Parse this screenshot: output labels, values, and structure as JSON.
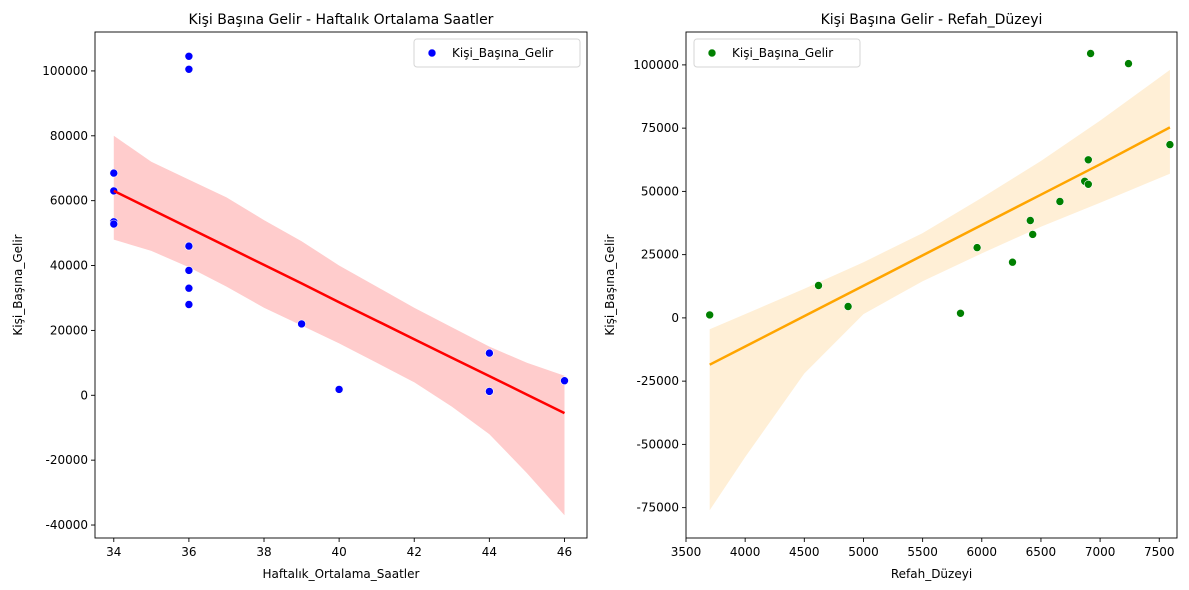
{
  "chart_data": [
    {
      "type": "scatter",
      "title": "Kişi Başına Gelir - Haftalık Ortalama Saatler",
      "xlabel": "Haftalık_Ortalama_Saatler",
      "ylabel": "Kişi_Başına_Gelir",
      "xlim": [
        33.5,
        46.6
      ],
      "ylim": [
        -44000,
        112000
      ],
      "xticks": [
        34,
        36,
        38,
        40,
        42,
        44,
        46
      ],
      "yticks": [
        -40000,
        -20000,
        0,
        20000,
        40000,
        60000,
        80000,
        100000
      ],
      "grid": false,
      "legend": {
        "position": "top-right",
        "entries": [
          "Kişi_Başına_Gelir"
        ]
      },
      "series": [
        {
          "name": "Kişi_Başına_Gelir",
          "color": "#0000ff",
          "points": [
            {
              "x": 34,
              "y": 68500
            },
            {
              "x": 34,
              "y": 63000
            },
            {
              "x": 34,
              "y": 53500
            },
            {
              "x": 34,
              "y": 52800
            },
            {
              "x": 36,
              "y": 104500
            },
            {
              "x": 36,
              "y": 100500
            },
            {
              "x": 36,
              "y": 46000
            },
            {
              "x": 36,
              "y": 38500
            },
            {
              "x": 36,
              "y": 33000
            },
            {
              "x": 36,
              "y": 28000
            },
            {
              "x": 39,
              "y": 22000
            },
            {
              "x": 40,
              "y": 1800
            },
            {
              "x": 44,
              "y": 13000
            },
            {
              "x": 44,
              "y": 1200
            },
            {
              "x": 46,
              "y": 4500
            }
          ]
        }
      ],
      "regression": {
        "color": "#ff0000",
        "band_color": "#ffcccc",
        "x": [
          34,
          35,
          36,
          37,
          38,
          39,
          40,
          41,
          42,
          43,
          44,
          45,
          46
        ],
        "y": [
          63000,
          57300,
          51600,
          45900,
          40200,
          34500,
          28700,
          23000,
          17300,
          11600,
          5900,
          200,
          -5500
        ],
        "upper": [
          80000,
          72000,
          66500,
          61000,
          54000,
          47500,
          40000,
          33500,
          27000,
          21000,
          15000,
          10000,
          6000
        ],
        "lower": [
          48000,
          44500,
          39500,
          33500,
          27000,
          21500,
          16000,
          10000,
          4000,
          -3500,
          -12000,
          -24000,
          -37000
        ]
      }
    },
    {
      "type": "scatter",
      "title": "Kişi Başına Gelir - Refah_Düzeyi",
      "xlabel": "Refah_Düzeyi",
      "ylabel": "Kişi_Başına_Gelir",
      "xlim": [
        3500,
        7650
      ],
      "ylim": [
        -87000,
        113000
      ],
      "xticks": [
        3500,
        4000,
        4500,
        5000,
        5500,
        6000,
        6500,
        7000,
        7500
      ],
      "yticks": [
        -75000,
        -50000,
        -25000,
        0,
        25000,
        50000,
        75000,
        100000
      ],
      "grid": false,
      "legend": {
        "position": "top-left",
        "entries": [
          "Kişi_Başına_Gelir"
        ]
      },
      "series": [
        {
          "name": "Kişi_Başına_Gelir",
          "color": "#008000",
          "points": [
            {
              "x": 3700,
              "y": 1200
            },
            {
              "x": 4620,
              "y": 12800
            },
            {
              "x": 4870,
              "y": 4500
            },
            {
              "x": 5820,
              "y": 1800
            },
            {
              "x": 5960,
              "y": 27800
            },
            {
              "x": 6260,
              "y": 22000
            },
            {
              "x": 6410,
              "y": 38500
            },
            {
              "x": 6430,
              "y": 33000
            },
            {
              "x": 6660,
              "y": 46000
            },
            {
              "x": 6870,
              "y": 54000
            },
            {
              "x": 6900,
              "y": 62500
            },
            {
              "x": 6900,
              "y": 52800
            },
            {
              "x": 6920,
              "y": 104500
            },
            {
              "x": 7240,
              "y": 100500
            },
            {
              "x": 7590,
              "y": 68500
            }
          ]
        }
      ],
      "regression": {
        "color": "#ffa500",
        "band_color": "#ffefd6",
        "x": [
          3700,
          4000,
          4500,
          5000,
          5500,
          6000,
          6500,
          7000,
          7590
        ],
        "y": [
          -18500,
          -11300,
          700,
          12700,
          24700,
          36700,
          48700,
          60700,
          75300
        ],
        "upper": [
          -4500,
          1500,
          11500,
          22000,
          33500,
          47500,
          62000,
          78000,
          98000
        ],
        "lower": [
          -76000,
          -55000,
          -22000,
          1500,
          14500,
          25500,
          36000,
          45500,
          57000
        ]
      }
    }
  ]
}
